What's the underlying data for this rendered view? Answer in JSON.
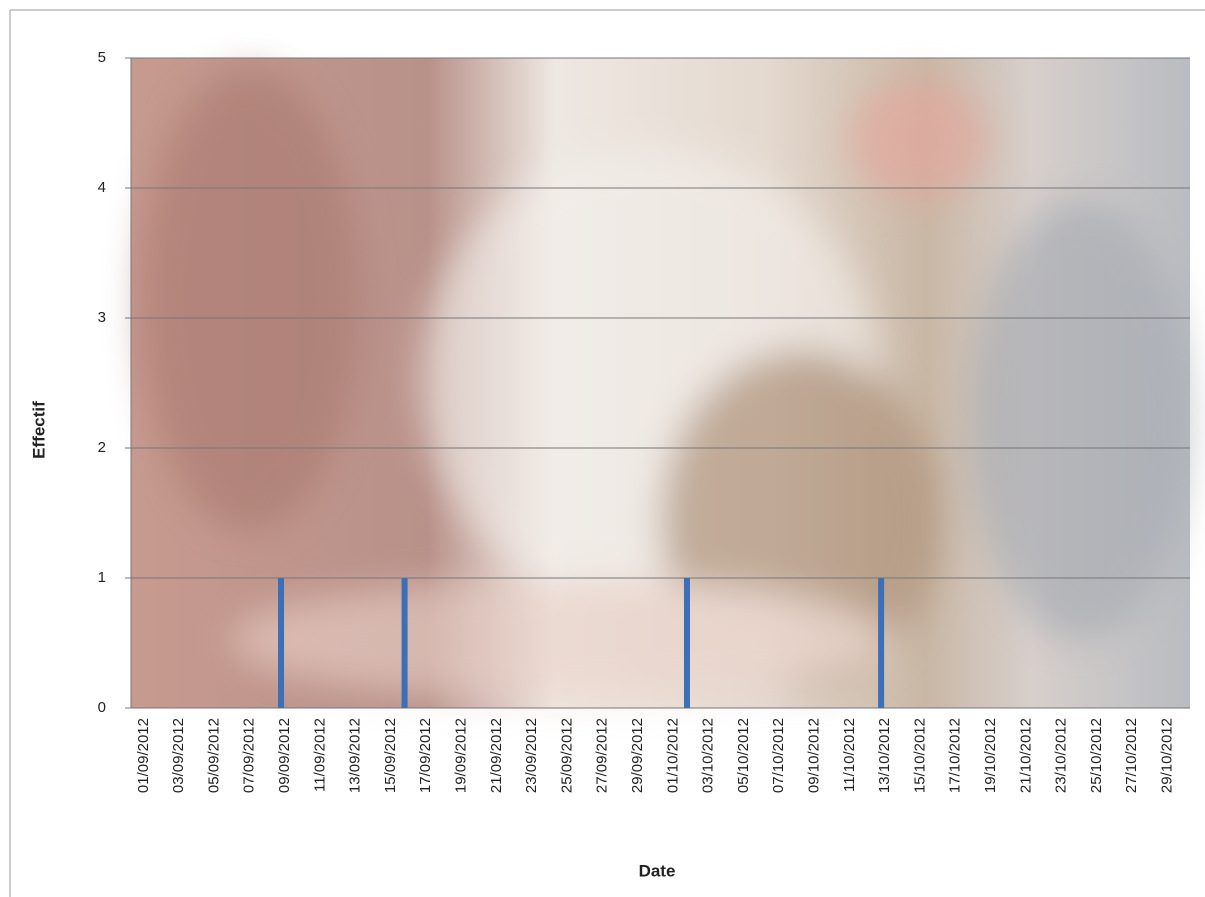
{
  "chart_data": {
    "type": "bar",
    "x_label": "Date",
    "y_label": "Effectif",
    "categories": [
      "01/09/2012",
      null,
      "03/09/2012",
      null,
      "05/09/2012",
      null,
      "07/09/2012",
      null,
      "09/09/2012",
      null,
      "11/09/2012",
      null,
      "13/09/2012",
      null,
      "15/09/2012",
      null,
      "17/09/2012",
      null,
      "19/09/2012",
      null,
      "21/09/2012",
      null,
      "23/09/2012",
      null,
      "25/09/2012",
      null,
      "27/09/2012",
      null,
      "29/09/2012",
      null,
      "01/10/2012",
      null,
      "03/10/2012",
      null,
      "05/10/2012",
      null,
      "07/10/2012",
      null,
      "09/10/2012",
      null,
      "11/10/2012",
      null,
      "13/10/2012",
      null,
      "15/10/2012",
      null,
      "17/10/2012",
      null,
      "19/10/2012",
      null,
      "21/10/2012",
      null,
      "23/10/2012",
      null,
      "25/10/2012",
      null,
      "27/10/2012",
      null,
      "29/10/2012",
      null
    ],
    "values": [
      0,
      0,
      0,
      0,
      0,
      0,
      0,
      0,
      1,
      0,
      0,
      0,
      0,
      0,
      0,
      1,
      0,
      0,
      0,
      0,
      0,
      0,
      0,
      0,
      0,
      0,
      0,
      0,
      0,
      0,
      0,
      1,
      0,
      0,
      0,
      0,
      0,
      0,
      0,
      0,
      0,
      0,
      1,
      0,
      0,
      0,
      0,
      0,
      0,
      0,
      0,
      0,
      0,
      0,
      0,
      0,
      0,
      0,
      0,
      0
    ],
    "color": "#3c6fb6",
    "ylim": [
      0,
      5
    ],
    "yticks": [
      0,
      1,
      2,
      3,
      4,
      5
    ],
    "grid": true
  }
}
